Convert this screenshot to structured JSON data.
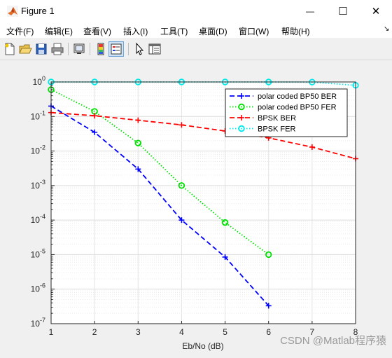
{
  "window": {
    "title": "Figure 1",
    "minimize_glyph": "—",
    "maximize_glyph": "☐",
    "close_glyph": "✕"
  },
  "menu": [
    "文件(F)",
    "编辑(E)",
    "查看(V)",
    "插入(I)",
    "工具(T)",
    "桌面(D)",
    "窗口(W)",
    "帮助(H)"
  ],
  "menu_arrow": "↘",
  "toolbar_icons": [
    "new-figure-icon",
    "open-file-icon",
    "save-icon",
    "print-icon",
    "link-plot-icon",
    "colorbar-icon",
    "legend-icon",
    "pointer-icon",
    "property-editor-icon"
  ],
  "watermark": "CSDN @Matlab程序猿",
  "chart_data": {
    "type": "line",
    "xlabel": "Eb/No (dB)",
    "ylabel": "",
    "x_ticks": [
      "1",
      "2",
      "3",
      "4",
      "5",
      "6",
      "7",
      "8"
    ],
    "xlim": [
      1,
      8
    ],
    "y_scale": "log",
    "ylim": [
      1e-07,
      1
    ],
    "y_ticks": [
      {
        "value": 1,
        "base": "10",
        "exp": "0"
      },
      {
        "value": 0.1,
        "base": "10",
        "exp": "-1"
      },
      {
        "value": 0.01,
        "base": "10",
        "exp": "-2"
      },
      {
        "value": 0.001,
        "base": "10",
        "exp": "-3"
      },
      {
        "value": 0.0001,
        "base": "10",
        "exp": "-4"
      },
      {
        "value": 1e-05,
        "base": "10",
        "exp": "-5"
      },
      {
        "value": 1e-06,
        "base": "10",
        "exp": "-6"
      },
      {
        "value": 1e-07,
        "base": "10",
        "exp": "-7"
      }
    ],
    "grid": true,
    "legend_position": "top-right",
    "series": [
      {
        "name": "polar coded BP50 BER",
        "color": "#0000ff",
        "dash": "dashed",
        "marker": "plus",
        "x": [
          1,
          2,
          3,
          4,
          5,
          6
        ],
        "y": [
          0.2,
          0.035,
          0.003,
          0.0001,
          8.5e-06,
          3.3e-07
        ]
      },
      {
        "name": "polar coded BP50 FER",
        "color": "#00e000",
        "dash": "dotted",
        "marker": "circle",
        "x": [
          1,
          2,
          3,
          4,
          5,
          6
        ],
        "y": [
          0.6,
          0.14,
          0.017,
          0.001,
          8.5e-05,
          1e-05
        ]
      },
      {
        "name": "BPSK BER",
        "color": "#ff0000",
        "dash": "dashed",
        "marker": "plus",
        "x": [
          1,
          2,
          3,
          4,
          5,
          6,
          7,
          8
        ],
        "y": [
          0.13,
          0.105,
          0.078,
          0.057,
          0.038,
          0.024,
          0.013,
          0.006
        ]
      },
      {
        "name": "BPSK FER",
        "color": "#00e8e8",
        "dash": "dotted",
        "marker": "circle",
        "x": [
          1,
          2,
          3,
          4,
          5,
          6,
          7,
          8
        ],
        "y": [
          1,
          1,
          1,
          1,
          1,
          1,
          0.99,
          0.8
        ]
      }
    ]
  }
}
